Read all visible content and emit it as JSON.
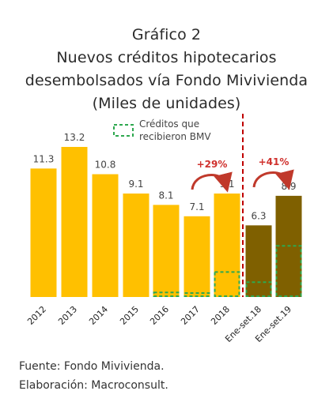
{
  "chart_data": {
    "type": "bar",
    "title": "Gráfico 2",
    "subtitle_lines": [
      "Nuevos créditos hipotecarios",
      "desembolsados vía Fondo Mivivienda",
      "(Miles de unidades)"
    ],
    "categories": [
      "2012",
      "2013",
      "2014",
      "2015",
      "2016",
      "2017",
      "2018",
      "Ene-set.18",
      "Ene-set.19"
    ],
    "values": [
      11.3,
      13.2,
      10.8,
      9.1,
      8.1,
      7.1,
      9.1,
      6.3,
      8.9
    ],
    "value_labels": [
      "11.3",
      "13.2",
      "10.8",
      "9.1",
      "8.1",
      "7.1",
      "9.1",
      "6.3",
      "8.9"
    ],
    "bmv_values": [
      0,
      0,
      0,
      0,
      0.4,
      0.3,
      2.2,
      1.3,
      4.5
    ],
    "legend": {
      "label_line1": "Créditos que",
      "label_line2": "recibieron BMV",
      "placement": "top-center"
    },
    "annotations": [
      {
        "text": "+29%",
        "from": "2017",
        "to": "2018"
      },
      {
        "text": "+41%",
        "from": "Ene-set.18",
        "to": "Ene-set.19"
      }
    ],
    "colors": {
      "annual": "#FFC000",
      "period": "#7F6000",
      "bmv_outline": "#2EA84F",
      "divider": "#C00000",
      "annotation": "#D0312D",
      "arrow": "#C0392B"
    },
    "xlabel": "",
    "ylabel": "",
    "ylim": [
      0,
      13.2
    ],
    "grid": false
  },
  "footer": {
    "source": "Fuente: Fondo Mivivienda.",
    "elaboration": "Elaboración: Macroconsult."
  }
}
